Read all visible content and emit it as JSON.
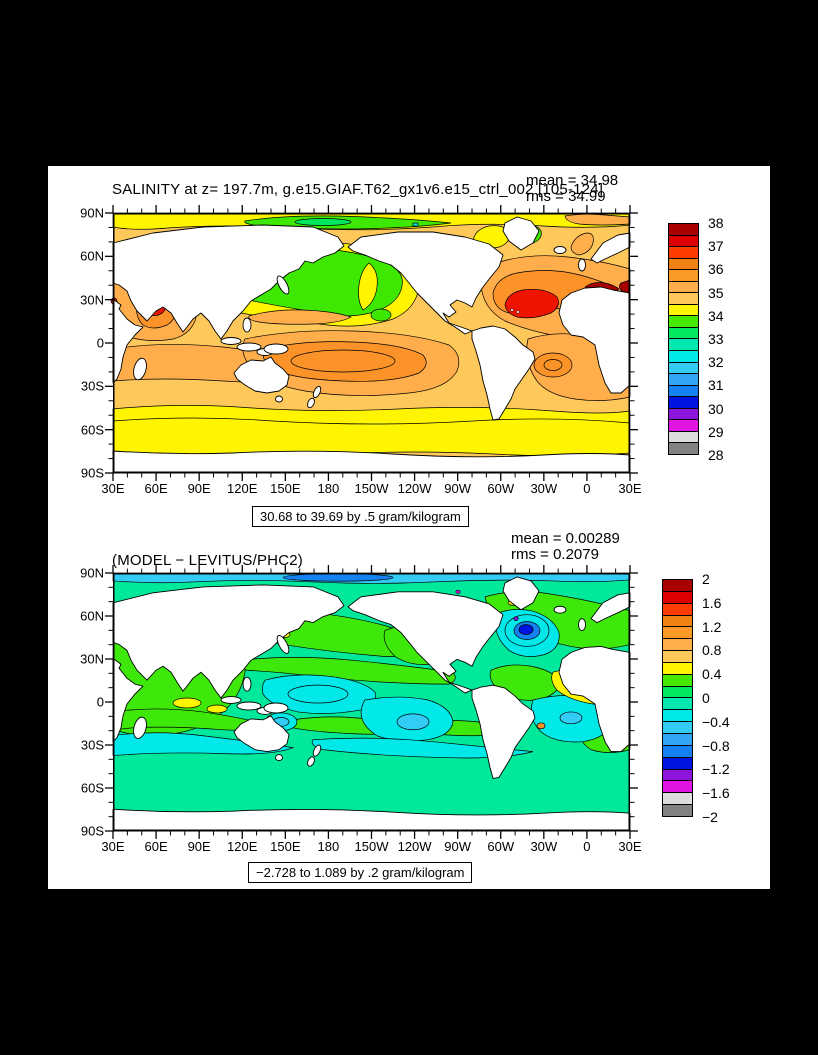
{
  "page": {
    "background": "#000000",
    "panel_background": "#ffffff"
  },
  "top_plot": {
    "title": "SALINITY at z= 197.7m, g.e15.GIAF.T62_gx1v6.e15_ctrl_002 [105-124]",
    "mean_label": "mean = 34.98",
    "rms_label": "rms = 34.99",
    "range_label": "30.68 to 39.69 by .5 gram/kilogram",
    "x_ticks": [
      "30E",
      "60E",
      "90E",
      "120E",
      "150E",
      "180",
      "150W",
      "120W",
      "90W",
      "60W",
      "30W",
      "0",
      "30E"
    ],
    "y_ticks": [
      "90N",
      "60N",
      "30N",
      "0",
      "30S",
      "60S",
      "90S"
    ]
  },
  "bottom_plot": {
    "title": "(MODEL − LEVITUS/PHC2)",
    "mean_label": "mean = 0.00289",
    "rms_label": "rms = 0.2079",
    "range_label": "−2.728 to 1.089 by .2 gram/kilogram",
    "x_ticks": [
      "30E",
      "60E",
      "90E",
      "120E",
      "150E",
      "180",
      "150W",
      "120W",
      "90W",
      "60W",
      "30W",
      "0",
      "30E"
    ],
    "y_ticks": [
      "90N",
      "60N",
      "30N",
      "0",
      "30S",
      "60S",
      "90S"
    ]
  },
  "colorbars": {
    "cb1": {
      "labels": [
        "38",
        "37",
        "36",
        "35",
        "34",
        "33",
        "32",
        "31",
        "30",
        "29",
        "28"
      ],
      "colors": [
        "#a80000",
        "#dd0000",
        "#ff3c00",
        "#f08214",
        "#fc9a28",
        "#ffae4b",
        "#ffc85a",
        "#fff500",
        "#46e800",
        "#00e85e",
        "#00e8b0",
        "#00e8e8",
        "#32ccf5",
        "#32a5f5",
        "#1482f0",
        "#0014e1",
        "#8c14dc",
        "#e114e1",
        "#dcdcdc",
        "#828282"
      ]
    },
    "cb2": {
      "labels": [
        "2",
        "1.6",
        "1.2",
        "0.8",
        "0.4",
        "0",
        "−0.4",
        "−0.8",
        "−1.2",
        "−1.6",
        "−2"
      ],
      "colors": [
        "#a80000",
        "#dd0000",
        "#ff3c00",
        "#f08214",
        "#fc9a28",
        "#ffae4b",
        "#ffc85a",
        "#fff500",
        "#46e800",
        "#00e85e",
        "#00e8b0",
        "#00e8e8",
        "#32ccf5",
        "#32a5f5",
        "#1482f0",
        "#0014e1",
        "#8c14dc",
        "#e114e1",
        "#dcdcdc",
        "#828282"
      ]
    }
  },
  "chart_data": [
    {
      "type": "heatmap",
      "variant": "filled_contour_world_map",
      "title": "SALINITY at z= 197.7m, g.e15.GIAF.T62_gx1v6.e15_ctrl_002 [105-124]",
      "mean": 34.98,
      "rms": 34.99,
      "units": "gram/kilogram",
      "data_range_text": "30.68 to 39.69 by .5 gram/kilogram",
      "data_min": 30.68,
      "data_max": 39.69,
      "contour_interval": 0.5,
      "x_tick_labels": [
        "30E",
        "60E",
        "90E",
        "120E",
        "150E",
        "180",
        "150W",
        "120W",
        "90W",
        "60W",
        "30W",
        "0",
        "30E"
      ],
      "y_tick_labels": [
        "90N",
        "60N",
        "30N",
        "0",
        "30S",
        "60S",
        "90S"
      ],
      "colorbar_tick_labels": [
        38,
        37,
        36,
        35,
        34,
        33,
        32,
        31,
        30,
        29,
        28
      ],
      "legend_position": "right",
      "grid": false,
      "notable_features": [
        "fresh subpolar North Pacific and Arctic (green, ~33-34)",
        "salty subtropical North Atlantic blob (red, >37) with Mediterranean dark-red (>37.5) patches",
        "salty Arabian Sea spot (red, ~37)",
        "subtropical gyre salinity maxima (~35.5-36, orange) in South Pacific, Indian and South Atlantic",
        "fresher yellow band (~34-34.5) across the Southern Ocean"
      ]
    },
    {
      "type": "heatmap",
      "variant": "filled_contour_world_map",
      "title": "(MODEL − LEVITUS/PHC2)",
      "mean": 0.00289,
      "rms": 0.2079,
      "units": "gram/kilogram",
      "data_range_text": "−2.728 to 1.089 by .2 gram/kilogram",
      "data_min": -2.728,
      "data_max": 1.089,
      "contour_interval": 0.2,
      "x_tick_labels": [
        "30E",
        "60E",
        "90E",
        "120E",
        "150E",
        "180",
        "150W",
        "120W",
        "90W",
        "60W",
        "30W",
        "0",
        "30E"
      ],
      "y_tick_labels": [
        "90N",
        "60N",
        "30N",
        "0",
        "30S",
        "60S",
        "90S"
      ],
      "colorbar_tick_labels": [
        2,
        1.6,
        1.2,
        0.8,
        0.4,
        0,
        -0.4,
        -0.8,
        -1.2,
        -1.6,
        -2
      ],
      "legend_position": "right",
      "grid": false,
      "notable_features": [
        "differences mostly within ±0.2 (green / turquoise) over the global ocean",
        "strong negative anomaly (−1 to −2, dark blue/violet) near the Gulf Stream / NW Atlantic",
        "positive anomaly (+0.4 to +0.8, yellow) in the eastern South Atlantic",
        "scattered −0.4 (cyan) patches in subtropical Pacific, South Atlantic and Southern Ocean",
        "slightly negative Arctic band (−0.4 to −0.8, light blue)"
      ]
    }
  ]
}
